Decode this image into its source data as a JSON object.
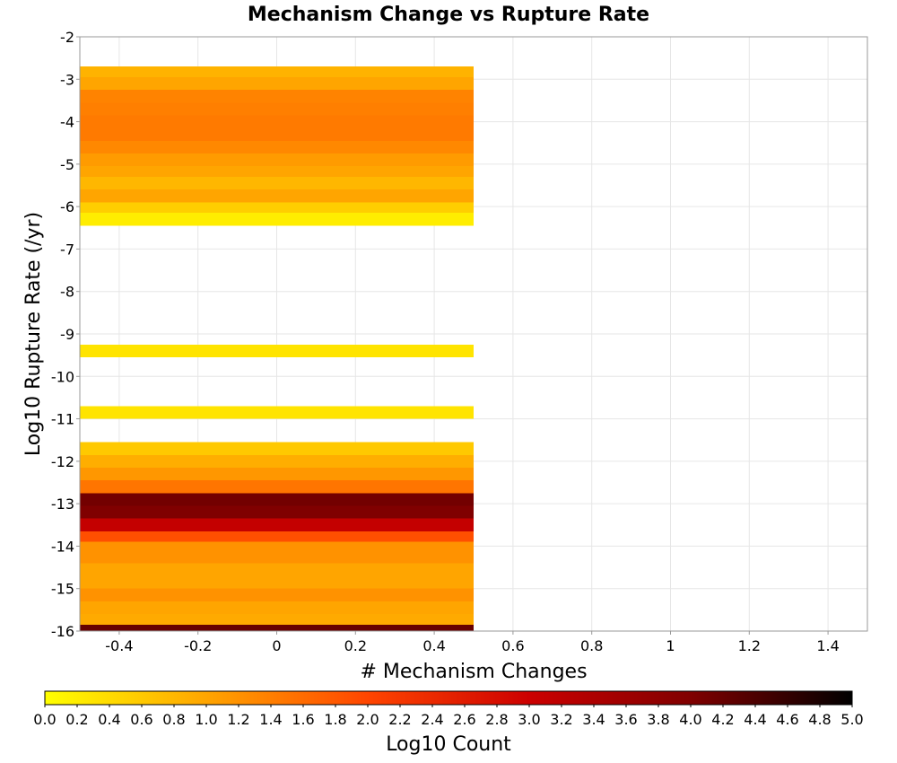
{
  "chart_data": {
    "type": "heatmap",
    "title": "Mechanism Change vs Rupture Rate",
    "xlabel": "# Mechanism Changes",
    "ylabel": "Log10 Rupture Rate (/yr)",
    "xlim": [
      -0.5,
      1.5
    ],
    "ylim": [
      -16,
      -2
    ],
    "x_ticks": [
      "-0.4",
      "-0.2",
      "0",
      "0.2",
      "0.4",
      "0.6",
      "0.8",
      "1",
      "1.2",
      "1.4"
    ],
    "y_ticks": [
      "-2",
      "-3",
      "-4",
      "-5",
      "-6",
      "-7",
      "-8",
      "-9",
      "-10",
      "-11",
      "-12",
      "-13",
      "-14",
      "-15",
      "-16"
    ],
    "grid": true,
    "colorbar": {
      "label": "Log10 Count",
      "range": [
        0,
        5
      ],
      "ticks": [
        "0.0",
        "0.2",
        "0.4",
        "0.6",
        "0.8",
        "1.0",
        "1.2",
        "1.4",
        "1.6",
        "1.8",
        "2.0",
        "2.2",
        "2.4",
        "2.6",
        "2.8",
        "3.0",
        "3.2",
        "3.4",
        "3.6",
        "3.8",
        "4.0",
        "4.2",
        "4.4",
        "4.6",
        "4.8",
        "5.0"
      ],
      "colors": [
        "#ffff00",
        "#ffa500",
        "#ff4500",
        "#cc0000",
        "#800000",
        "#000000"
      ]
    },
    "cells": [
      {
        "x0": -0.5,
        "x1": 0.5,
        "y0": -2.95,
        "y1": -2.7,
        "value": 0.85
      },
      {
        "x0": -0.5,
        "x1": 0.5,
        "y0": -3.25,
        "y1": -2.95,
        "value": 1.0
      },
      {
        "x0": -0.5,
        "x1": 0.5,
        "y0": -3.55,
        "y1": -3.25,
        "value": 1.35
      },
      {
        "x0": -0.5,
        "x1": 0.5,
        "y0": -3.85,
        "y1": -3.55,
        "value": 1.4
      },
      {
        "x0": -0.5,
        "x1": 0.5,
        "y0": -4.45,
        "y1": -3.85,
        "value": 1.45
      },
      {
        "x0": -0.5,
        "x1": 0.5,
        "y0": -4.75,
        "y1": -4.45,
        "value": 1.3
      },
      {
        "x0": -0.5,
        "x1": 0.5,
        "y0": -5.05,
        "y1": -4.75,
        "value": 1.1
      },
      {
        "x0": -0.5,
        "x1": 0.5,
        "y0": -5.3,
        "y1": -5.05,
        "value": 1.0
      },
      {
        "x0": -0.5,
        "x1": 0.5,
        "y0": -5.6,
        "y1": -5.3,
        "value": 0.8
      },
      {
        "x0": -0.5,
        "x1": 0.5,
        "y0": -5.9,
        "y1": -5.6,
        "value": 1.0
      },
      {
        "x0": -0.5,
        "x1": 0.5,
        "y0": -6.15,
        "y1": -5.9,
        "value": 0.55
      },
      {
        "x0": -0.5,
        "x1": 0.5,
        "y0": -6.45,
        "y1": -6.15,
        "value": 0.2
      },
      {
        "x0": -0.5,
        "x1": 0.5,
        "y0": -9.55,
        "y1": -9.25,
        "value": 0.3
      },
      {
        "x0": -0.5,
        "x1": 0.5,
        "y0": -11.0,
        "y1": -10.7,
        "value": 0.3
      },
      {
        "x0": -0.5,
        "x1": 0.5,
        "y0": -11.85,
        "y1": -11.55,
        "value": 0.6
      },
      {
        "x0": -0.5,
        "x1": 0.5,
        "y0": -12.15,
        "y1": -11.85,
        "value": 0.9
      },
      {
        "x0": -0.5,
        "x1": 0.5,
        "y0": -12.45,
        "y1": -12.15,
        "value": 1.15
      },
      {
        "x0": -0.5,
        "x1": 0.5,
        "y0": -12.75,
        "y1": -12.45,
        "value": 1.5
      },
      {
        "x0": -0.5,
        "x1": 0.5,
        "y0": -13.05,
        "y1": -12.75,
        "value": 4.1
      },
      {
        "x0": -0.5,
        "x1": 0.5,
        "y0": -13.35,
        "y1": -13.05,
        "value": 4.0
      },
      {
        "x0": -0.5,
        "x1": 0.5,
        "y0": -13.65,
        "y1": -13.35,
        "value": 3.1
      },
      {
        "x0": -0.5,
        "x1": 0.5,
        "y0": -13.9,
        "y1": -13.65,
        "value": 1.9
      },
      {
        "x0": -0.5,
        "x1": 0.5,
        "y0": -14.4,
        "y1": -13.9,
        "value": 1.2
      },
      {
        "x0": -0.5,
        "x1": 0.5,
        "y0": -15.0,
        "y1": -14.4,
        "value": 1.0
      },
      {
        "x0": -0.5,
        "x1": 0.5,
        "y0": -15.3,
        "y1": -15.0,
        "value": 1.2
      },
      {
        "x0": -0.5,
        "x1": 0.5,
        "y0": -15.6,
        "y1": -15.3,
        "value": 1.0
      },
      {
        "x0": -0.5,
        "x1": 0.5,
        "y0": -15.85,
        "y1": -15.6,
        "value": 0.95
      },
      {
        "x0": -0.5,
        "x1": 0.5,
        "y0": -16.0,
        "y1": -15.85,
        "value": 4.2
      }
    ]
  }
}
